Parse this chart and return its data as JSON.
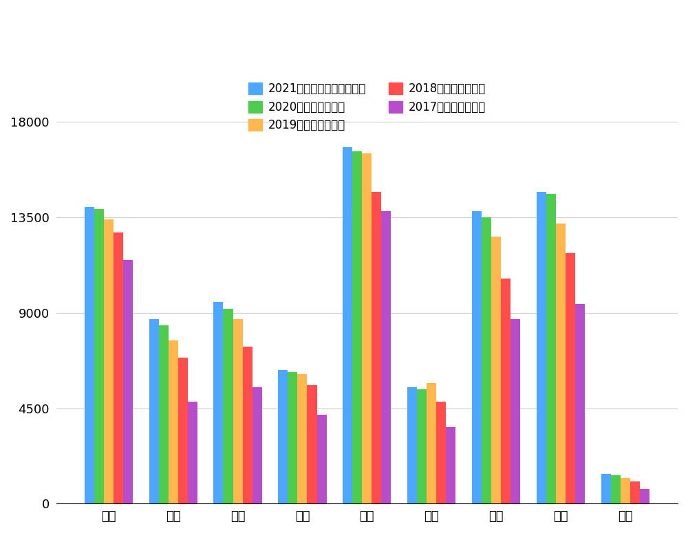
{
  "categories": [
    "建行",
    "光大",
    "中信",
    "民生",
    "工行",
    "兴业",
    "农行",
    "中行",
    "上海"
  ],
  "series": [
    {
      "label": "2021上半年发卡量（万张）",
      "color": "#4da6ff",
      "values": [
        14000,
        8700,
        9500,
        6300,
        16800,
        5500,
        13800,
        14700,
        1400
      ]
    },
    {
      "label": "2020发卡量（万张）",
      "color": "#4dcc4d",
      "values": [
        13900,
        8400,
        9200,
        6200,
        16600,
        5400,
        13500,
        14600,
        1350
      ]
    },
    {
      "label": "2019发卡量（万张）",
      "color": "#ffb84d",
      "values": [
        13400,
        7700,
        8700,
        6100,
        16500,
        5700,
        12600,
        13200,
        1200
      ]
    },
    {
      "label": "2018发卡量（万张）",
      "color": "#ff4d4d",
      "values": [
        12800,
        6900,
        7400,
        5600,
        14700,
        4800,
        10600,
        11800,
        1050
      ]
    },
    {
      "label": "2017发卡量（万张）",
      "color": "#b84dcc",
      "values": [
        11500,
        4800,
        5500,
        4200,
        13800,
        3600,
        8700,
        9400,
        700
      ]
    }
  ],
  "ylim": [
    0,
    18000
  ],
  "yticks": [
    0,
    4500,
    9000,
    13500,
    18000
  ],
  "background_color": "#ffffff",
  "grid_color": "#cccccc",
  "legend_fontsize": 12,
  "tick_fontsize": 13
}
